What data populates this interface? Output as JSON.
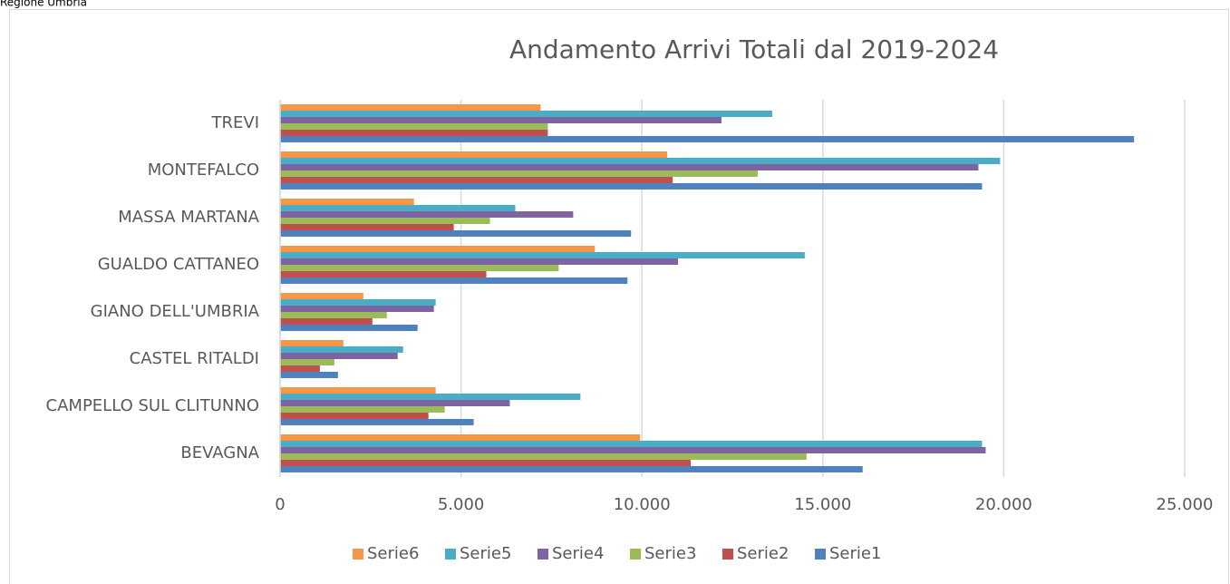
{
  "header": "Regione Umbria",
  "chart_data": {
    "type": "hbar",
    "title": "Andamento Arrivi Totali dal 2019-2024",
    "categories": [
      "BEVAGNA",
      "CAMPELLO SUL CLITUNNO",
      "CASTEL RITALDI",
      "GIANO DELL'UMBRIA",
      "GUALDO CATTANEO",
      "MASSA MARTANA",
      "MONTEFALCO",
      "TREVI"
    ],
    "series": [
      {
        "name": "Serie1",
        "color": "#4f81bd",
        "values": [
          16100,
          5350,
          1600,
          3800,
          9600,
          9700,
          19400,
          23600
        ]
      },
      {
        "name": "Serie2",
        "color": "#c0504d",
        "values": [
          11350,
          4100,
          1100,
          2550,
          5700,
          4800,
          10850,
          7400
        ]
      },
      {
        "name": "Serie3",
        "color": "#9bbb59",
        "values": [
          14550,
          4550,
          1500,
          2950,
          7700,
          5800,
          13200,
          7400
        ]
      },
      {
        "name": "Serie4",
        "color": "#8064a2",
        "values": [
          19500,
          6350,
          3250,
          4250,
          11000,
          8100,
          19300,
          12200
        ]
      },
      {
        "name": "Serie5",
        "color": "#4bacc6",
        "values": [
          19400,
          8300,
          3400,
          4300,
          14500,
          6500,
          19900,
          13600
        ]
      },
      {
        "name": "Serie6",
        "color": "#f79646",
        "values": [
          9950,
          4300,
          1750,
          2300,
          8700,
          3700,
          10700,
          7200
        ]
      }
    ],
    "xlim": [
      0,
      25000
    ],
    "xticks": [
      0,
      {
        "value": 5000,
        "label": "5.000"
      },
      {
        "value": 10000,
        "label": "10.000"
      },
      {
        "value": 15000,
        "label": "15.000"
      },
      {
        "value": 20000,
        "label": "20.000"
      },
      {
        "value": 25000,
        "label": "25.000"
      }
    ],
    "grid": true,
    "legend": "bottom"
  }
}
